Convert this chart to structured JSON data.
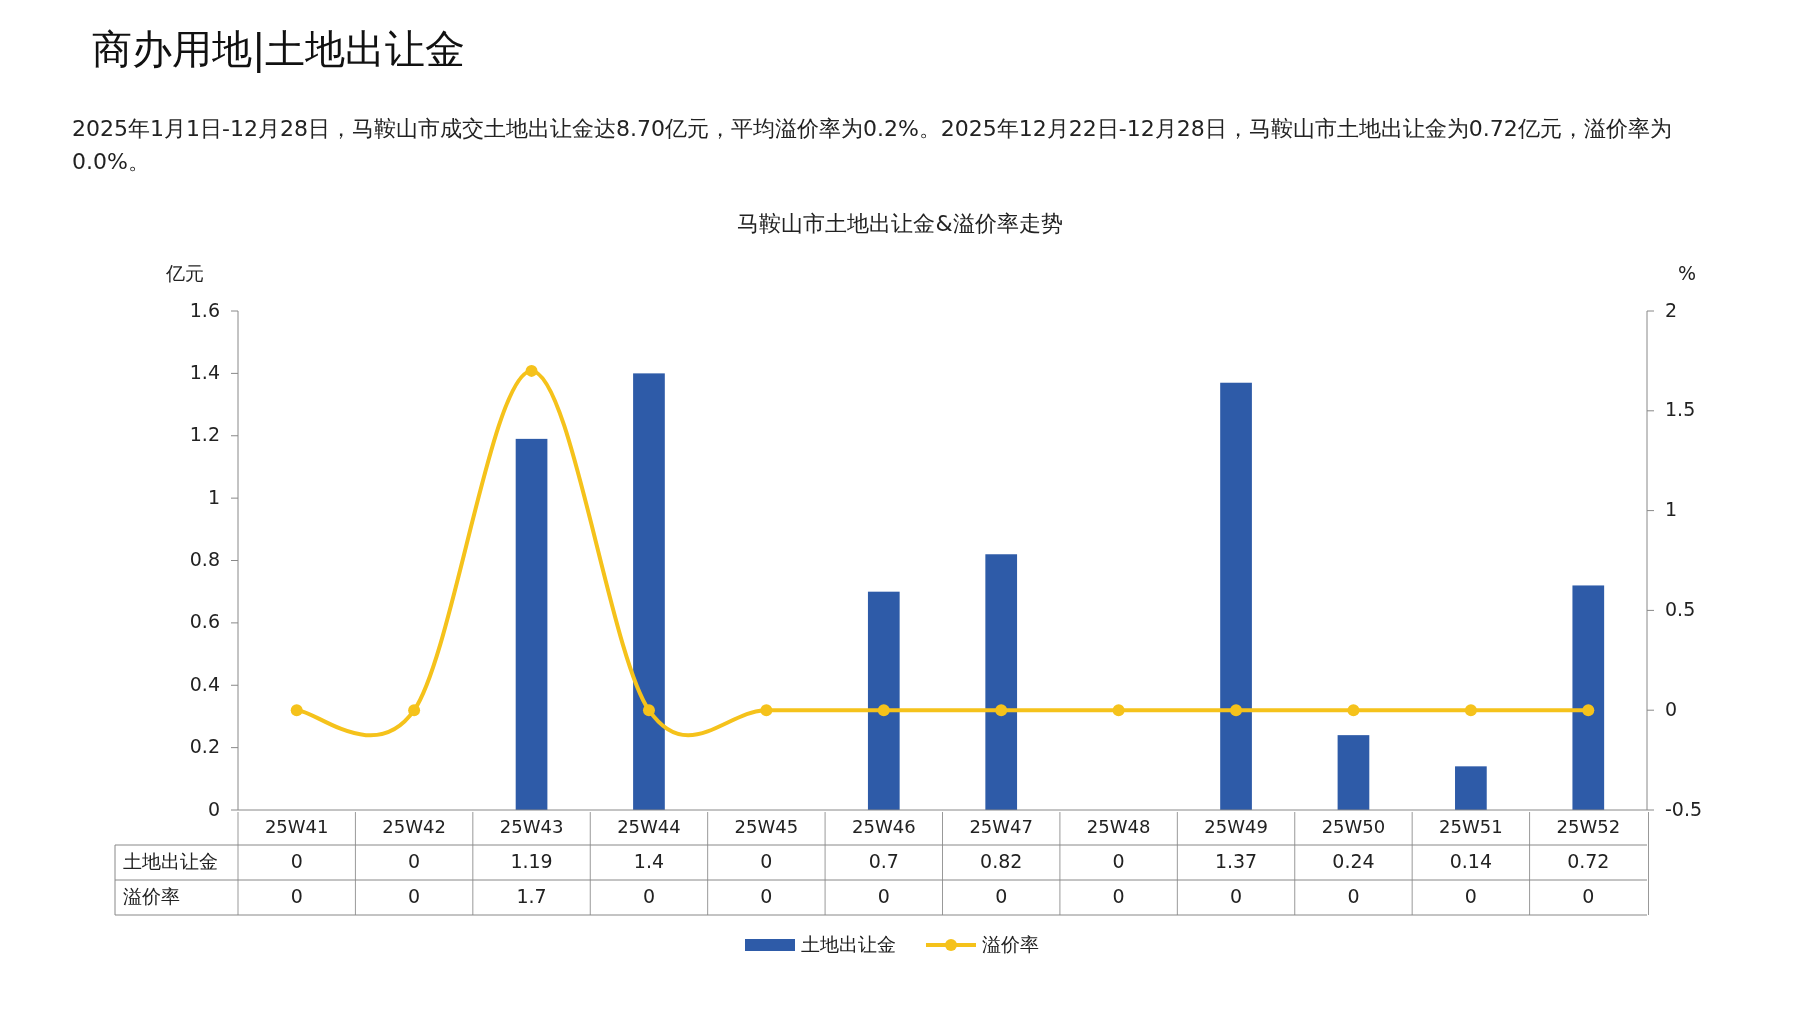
{
  "chart_data": {
    "type": "bar",
    "title": "商办用地|土地出让金",
    "subtitle": "马鞍山市土地出让金&溢价率走势",
    "annotations": [
      "2025年1月1日-12月28日，马鞍山市成交土地出让金达8.70亿元，平均溢价率为0.2%。2025年12月22日-12月28日，马鞍山市土地出让金为0.72亿元，溢价率为0.0%。"
    ],
    "ylabel": "亿元",
    "y2label": "%",
    "categories": [
      "25W41",
      "25W42",
      "25W43",
      "25W44",
      "25W45",
      "25W46",
      "25W47",
      "25W48",
      "25W49",
      "25W50",
      "25W51",
      "25W52"
    ],
    "series": [
      {
        "name": "土地出让金",
        "color": "#2e5ba8",
        "values": [
          0,
          0,
          1.19,
          1.4,
          0,
          0.7,
          0.82,
          0,
          1.37,
          0.24,
          0.14,
          0.72
        ]
      },
      {
        "name": "溢价率",
        "type": "line",
        "axis": "y2",
        "color": "#f5c21b",
        "marker": "circle",
        "values": [
          0,
          0,
          1.7,
          0,
          0,
          0,
          0,
          0,
          0,
          0,
          0,
          0
        ]
      }
    ],
    "ylim": [
      0,
      1.6
    ],
    "yticks": [
      0,
      0.2,
      0.4,
      0.6,
      0.8,
      1,
      1.2,
      1.4,
      1.6
    ],
    "y2lim": [
      -0.5,
      2
    ],
    "y2ticks": [
      -0.5,
      0,
      0.5,
      1,
      1.5,
      2
    ],
    "data_labels": true,
    "legend": "bottom",
    "grid": false
  }
}
